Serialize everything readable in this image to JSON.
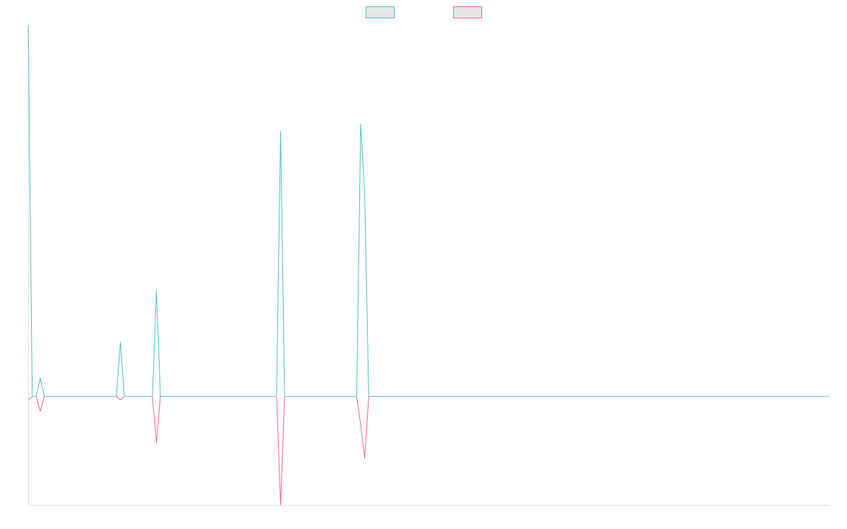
{
  "chart_data": {
    "type": "line",
    "xlim": [
      0,
      200
    ],
    "ylim": [
      -154,
      526
    ],
    "series": [
      {
        "color": "#4bc0c0",
        "values": [
          526,
          0,
          0,
          26,
          0,
          0,
          0,
          0,
          0,
          0,
          0,
          0,
          0,
          0,
          0,
          0,
          0,
          0,
          0,
          0,
          0,
          0,
          0,
          77,
          0,
          0,
          0,
          0,
          0,
          0,
          0,
          0,
          150,
          0,
          0,
          0,
          0,
          0,
          0,
          0,
          0,
          0,
          0,
          0,
          0,
          0,
          0,
          0,
          0,
          0,
          0,
          0,
          0,
          0,
          0,
          0,
          0,
          0,
          0,
          0,
          0,
          0,
          0,
          376,
          0,
          0,
          0,
          0,
          0,
          0,
          0,
          0,
          0,
          0,
          0,
          0,
          0,
          0,
          0,
          0,
          0,
          0,
          0,
          386,
          286,
          0,
          0,
          0,
          0,
          0,
          0,
          0,
          0,
          0,
          0,
          0,
          0,
          0,
          0,
          0,
          0,
          0,
          0,
          0,
          0,
          0,
          0,
          0,
          0,
          0,
          0,
          0,
          0,
          0,
          0,
          0,
          0,
          0,
          0,
          0,
          0,
          0,
          0,
          0,
          0,
          0,
          0,
          0,
          0,
          0,
          0,
          0,
          0,
          0,
          0,
          0,
          0,
          0,
          0,
          0,
          0,
          0,
          0,
          0,
          0,
          0,
          0,
          0,
          0,
          0,
          0,
          0,
          0,
          0,
          0,
          0,
          0,
          0,
          0,
          0,
          0,
          0,
          0,
          0,
          0,
          0,
          0,
          0,
          0,
          0,
          0,
          0,
          0,
          0,
          0,
          0,
          0,
          0,
          0,
          0,
          0,
          0,
          0,
          0,
          0,
          0,
          0,
          0,
          0,
          0,
          0,
          0,
          0,
          0,
          0,
          0,
          0,
          0,
          0,
          0,
          0
        ]
      },
      {
        "color": "#ff6384",
        "values": [
          -5,
          0,
          0,
          -21,
          0,
          0,
          0,
          0,
          0,
          0,
          0,
          0,
          0,
          0,
          0,
          0,
          0,
          0,
          0,
          0,
          0,
          0,
          0,
          -5,
          0,
          0,
          0,
          0,
          0,
          0,
          0,
          0,
          -66,
          0,
          0,
          0,
          0,
          0,
          0,
          0,
          0,
          0,
          0,
          0,
          0,
          0,
          0,
          0,
          0,
          0,
          0,
          0,
          0,
          0,
          0,
          0,
          0,
          0,
          0,
          0,
          0,
          0,
          0,
          -154,
          0,
          0,
          0,
          0,
          0,
          0,
          0,
          0,
          0,
          0,
          0,
          0,
          0,
          0,
          0,
          0,
          0,
          0,
          0,
          -40,
          -88,
          0,
          0,
          0,
          0,
          0,
          0,
          0,
          0,
          0,
          0,
          0,
          0,
          0,
          0,
          0,
          0,
          0,
          0,
          0,
          0,
          0,
          0,
          0,
          0,
          0,
          0,
          0,
          0,
          0,
          0,
          0,
          0,
          0,
          0,
          0,
          0,
          0,
          0,
          0,
          0,
          0,
          0,
          0,
          0,
          0,
          0,
          0,
          0,
          0,
          0,
          0,
          0,
          0,
          0,
          0,
          0,
          0,
          0,
          0,
          0,
          0,
          0,
          0,
          0,
          0,
          0,
          0,
          0,
          0,
          0,
          0,
          0,
          0,
          0,
          0,
          0,
          0,
          0,
          0,
          0,
          0,
          0,
          0,
          0,
          0,
          0,
          0,
          0,
          0,
          0,
          0,
          0,
          0,
          0,
          0,
          0,
          0,
          0,
          0,
          0,
          0,
          0,
          0,
          0,
          0,
          0,
          0,
          0,
          0,
          0,
          0,
          0,
          0,
          0,
          0,
          0
        ]
      }
    ]
  }
}
